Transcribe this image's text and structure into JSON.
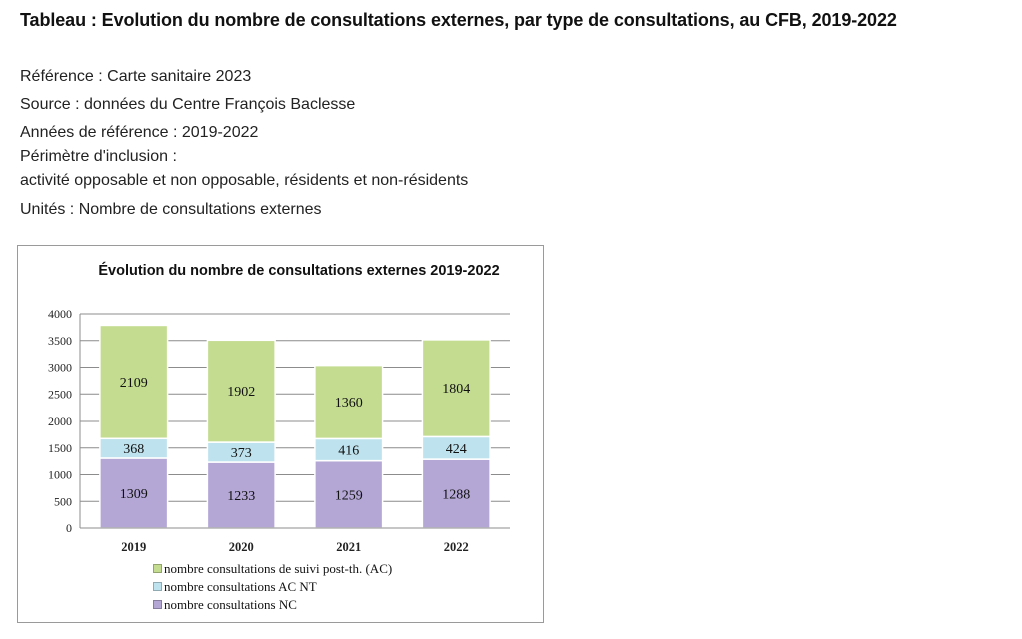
{
  "page": {
    "title": "Tableau : Evolution du nombre de consultations externes, par type de consultations, au CFB, 2019-2022",
    "meta": [
      "Référence : Carte sanitaire 2023",
      "Source : données du Centre François Baclesse",
      "Années de référence : 2019-2022",
      "Périmètre d'inclusion :",
      "activité opposable et non opposable, résidents et non-résidents",
      "Unités : Nombre de consultations externes"
    ]
  },
  "chart_data": {
    "type": "bar",
    "stacked": true,
    "title": "Évolution du nombre de consultations externes 2019-2022",
    "categories": [
      "2019",
      "2020",
      "2021",
      "2022"
    ],
    "ylim": [
      0,
      4000
    ],
    "yticks": [
      "0",
      "500",
      "1000",
      "1500",
      "2000",
      "2500",
      "3000",
      "3500",
      "4000"
    ],
    "grid": true,
    "legend_position": "bottom",
    "series": [
      {
        "name": "nombre consultations NC",
        "values": [
          1309,
          1233,
          1259,
          1288
        ],
        "color": "#b4a7d6"
      },
      {
        "name": "nombre consultations AC NT",
        "values": [
          368,
          373,
          416,
          424
        ],
        "color": "#bfe3ee"
      },
      {
        "name": "nombre consultations de suivi post-th. (AC)",
        "values": [
          2109,
          1902,
          1360,
          1804
        ],
        "color": "#c4dc90"
      }
    ],
    "legend_order": [
      2,
      1,
      0
    ]
  }
}
